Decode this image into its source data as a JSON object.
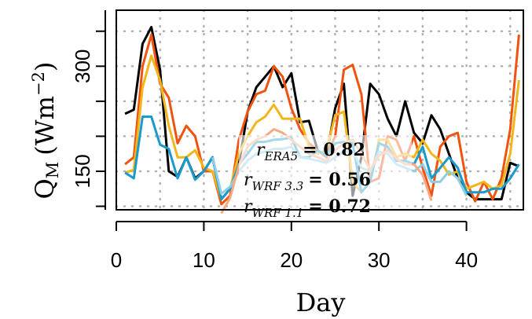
{
  "chart_data": {
    "type": "line",
    "xlabel": "Day",
    "ylabel_main": "Q",
    "ylabel_sub": "M",
    "ylabel_unit": "(Wm",
    "ylabel_exp": "−2",
    "ylabel_close": ")",
    "xlim": [
      0,
      46.5
    ],
    "ylim": [
      95,
      380
    ],
    "xticks": [
      0,
      10,
      20,
      30,
      40
    ],
    "yticks": [
      150,
      300
    ],
    "grid": true,
    "x": [
      1,
      2,
      3,
      4,
      5,
      6,
      7,
      8,
      9,
      10,
      11,
      12,
      13,
      14,
      15,
      16,
      17,
      18,
      19,
      20,
      21,
      22,
      23,
      24,
      25,
      26,
      27,
      28,
      29,
      30,
      31,
      32,
      33,
      34,
      35,
      36,
      37,
      38,
      39,
      40,
      41,
      42,
      43,
      44,
      45,
      46
    ],
    "series": [
      {
        "color": "#000000",
        "values": [
          232,
          238,
          332,
          356,
          295,
          150,
          142,
          170,
          140,
          150,
          170,
          110,
          125,
          160,
          235,
          270,
          285,
          300,
          270,
          290,
          220,
          222,
          180,
          172,
          240,
          275,
          115,
          170,
          275,
          260,
          225,
          200,
          250,
          205,
          190,
          230,
          210,
          175,
          140,
          120,
          110,
          110,
          110,
          110,
          162,
          157
        ]
      },
      {
        "color": "#f0530f",
        "values": [
          160,
          170,
          300,
          345,
          275,
          255,
          190,
          215,
          200,
          150,
          150,
          103,
          115,
          195,
          235,
          260,
          265,
          300,
          285,
          240,
          210,
          190,
          180,
          170,
          200,
          295,
          302,
          260,
          135,
          140,
          200,
          195,
          165,
          200,
          155,
          115,
          185,
          200,
          205,
          135,
          107,
          135,
          110,
          140,
          210,
          345
        ]
      },
      {
        "color": "#f2b51a",
        "values": [
          148,
          152,
          270,
          315,
          280,
          215,
          170,
          170,
          180,
          155,
          150,
          110,
          125,
          175,
          200,
          220,
          228,
          245,
          225,
          225,
          225,
          185,
          175,
          180,
          230,
          235,
          135,
          120,
          135,
          195,
          195,
          170,
          175,
          170,
          195,
          175,
          165,
          145,
          150,
          125,
          130,
          135,
          125,
          130,
          175,
          280
        ]
      },
      {
        "color": "#1a9bcc",
        "values": [
          148,
          140,
          228,
          228,
          188,
          182,
          140,
          170,
          138,
          150,
          170,
          110,
          125,
          160,
          175,
          192,
          192,
          195,
          196,
          198,
          170,
          170,
          180,
          172,
          190,
          192,
          190,
          120,
          135,
          190,
          185,
          165,
          165,
          160,
          185,
          140,
          155,
          170,
          155,
          120,
          120,
          120,
          125,
          125,
          140,
          160
        ]
      },
      {
        "color": "#8ccfe6",
        "values": [
          null,
          null,
          null,
          null,
          null,
          null,
          null,
          null,
          null,
          null,
          170,
          118,
          128,
          150,
          165,
          175,
          178,
          182,
          182,
          185,
          170,
          168,
          165,
          162,
          170,
          178,
          178,
          155,
          150,
          178,
          175,
          160,
          155,
          150,
          160,
          135,
          135,
          150,
          140,
          115,
          null,
          null,
          null,
          null,
          null,
          null
        ]
      },
      {
        "color": "#f6a982",
        "values": [
          null,
          null,
          null,
          null,
          null,
          null,
          null,
          null,
          null,
          null,
          null,
          90,
          112,
          158,
          185,
          195,
          200,
          210,
          205,
          195,
          185,
          175,
          170,
          165,
          180,
          190,
          195,
          175,
          152,
          172,
          180,
          168,
          160,
          160,
          145,
          108,
          null,
          null,
          null,
          null,
          null,
          null,
          null,
          null,
          null,
          null
        ]
      }
    ],
    "annotations": [
      {
        "name": "ERA5",
        "value": "0.82"
      },
      {
        "name": "WRF 3.3",
        "value": "0.56"
      },
      {
        "name": "WRF 1.1",
        "value": "0.72"
      }
    ]
  }
}
